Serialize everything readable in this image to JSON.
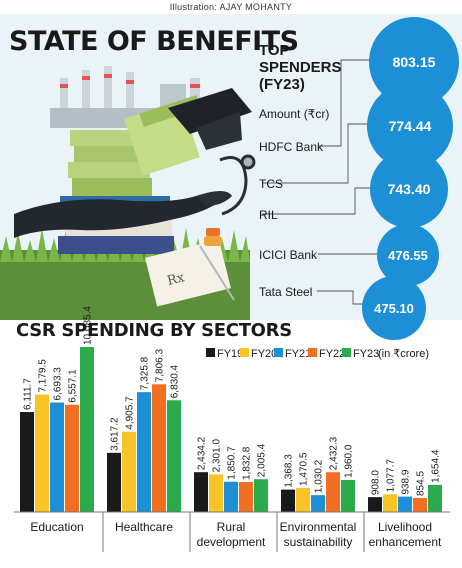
{
  "credit": "Illustration: AJAY MOHANTY",
  "title": "STATE OF BENEFITS",
  "top_spenders": {
    "title": "TOP SPENDERS (FY23)",
    "amount_label": "Amount (₹cr)",
    "companies": [
      {
        "name": "HDFC Bank",
        "value": "803.15"
      },
      {
        "name": "TCS",
        "value": "774.44"
      },
      {
        "name": "RIL",
        "value": "743.40"
      },
      {
        "name": "ICICI Bank",
        "value": "476.55"
      },
      {
        "name": "Tata Steel",
        "value": "475.10"
      }
    ]
  },
  "section_title": "CSR SPENDING BY SECTORS",
  "legend_unit": "(in ₹crore)",
  "colors": {
    "FY19": "#1a1a1a",
    "FY20": "#f7c325",
    "FY21": "#1c8fd6",
    "FY22": "#f26f21",
    "FY23": "#2bab4b",
    "bubble": "#1c8fd6",
    "panel": "#eaf3f8"
  },
  "chart_data": {
    "type": "bar",
    "categories": [
      "Education",
      "Healthcare",
      "Rural development",
      "Environmental sustainability",
      "Livelihood enhancement"
    ],
    "category_lines": [
      [
        "Education"
      ],
      [
        "Healthcare"
      ],
      [
        "Rural",
        "development"
      ],
      [
        "Environmental",
        "sustainability"
      ],
      [
        "Livelihood",
        "enhancement"
      ]
    ],
    "series": [
      {
        "name": "FY19",
        "values": [
          6111.7,
          3617.2,
          2434.2,
          1368.3,
          908.0
        ],
        "labels": [
          "6,111.7",
          "3,617.2",
          "2,434.2",
          "1,368.3",
          "908.0"
        ]
      },
      {
        "name": "FY20",
        "values": [
          7179.5,
          4905.7,
          2301.0,
          1470.5,
          1077.7
        ],
        "labels": [
          "7,179.5",
          "4,905.7",
          "2,301.0",
          "1,470.5",
          "1,077.7"
        ]
      },
      {
        "name": "FY21",
        "values": [
          6693.3,
          7325.8,
          1850.7,
          1030.2,
          938.9
        ],
        "labels": [
          "6,693.3",
          "7,325.8",
          "1,850.7",
          "1,030.2",
          "938.9"
        ]
      },
      {
        "name": "FY22",
        "values": [
          6557.1,
          7806.3,
          1832.8,
          2432.3,
          854.5
        ],
        "labels": [
          "6,557.1",
          "7,806.3",
          "1,832.8",
          "2,432.3",
          "854.5"
        ]
      },
      {
        "name": "FY23",
        "values": [
          10085.4,
          6830.4,
          2005.4,
          1960.0,
          1654.4
        ],
        "labels": [
          "10,085.4",
          "6,830.4",
          "2,005.4",
          "1,960.0",
          "1,654.4"
        ]
      }
    ],
    "ylabel": "in ₹crore",
    "ylim": [
      0,
      10085.4
    ],
    "legend": "top"
  }
}
